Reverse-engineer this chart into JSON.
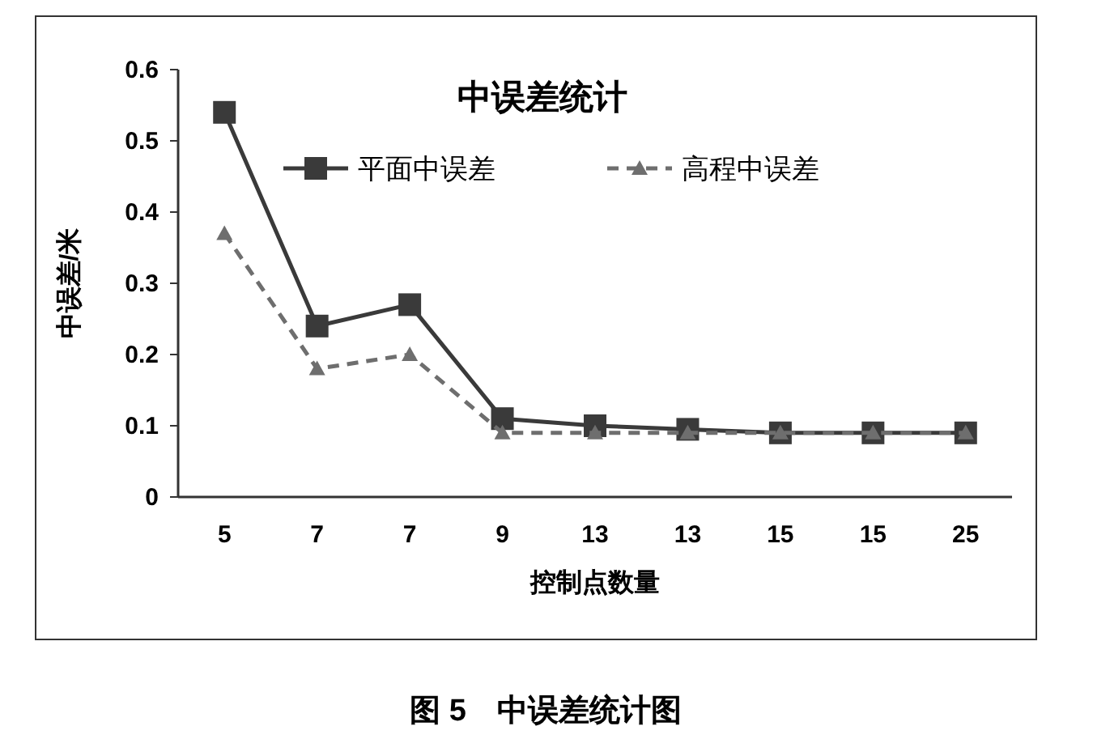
{
  "chart_data": {
    "type": "line",
    "title": "中误差统计",
    "xlabel": "控制点数量",
    "ylabel": "中误差/米",
    "categories": [
      "5",
      "7",
      "7",
      "9",
      "13",
      "13",
      "15",
      "15",
      "25"
    ],
    "series": [
      {
        "name": "平面中误差",
        "color": "#3a3a3a",
        "marker": "square",
        "line_style": "solid",
        "values": [
          0.54,
          0.24,
          0.27,
          0.11,
          0.1,
          0.095,
          0.09,
          0.09,
          0.09
        ]
      },
      {
        "name": "高程中误差",
        "color": "#6e6e6e",
        "marker": "triangle",
        "line_style": "dashed",
        "values": [
          0.37,
          0.18,
          0.2,
          0.09,
          0.09,
          0.09,
          0.09,
          0.09,
          0.09
        ]
      }
    ],
    "ylim": [
      0,
      0.6
    ],
    "yticks": [
      0,
      0.1,
      0.2,
      0.3,
      0.4,
      0.5,
      0.6
    ],
    "grid": false,
    "legend": "top",
    "annotations": [
      "图 5　中误差统计图"
    ]
  }
}
